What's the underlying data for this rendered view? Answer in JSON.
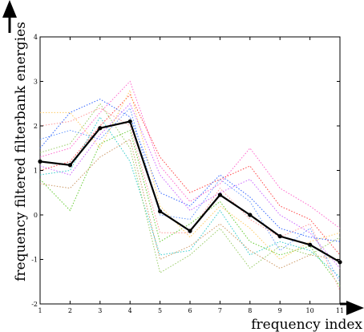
{
  "chart_data": {
    "type": "line",
    "xlabel": "frequency index",
    "ylabel": "frequency filtered filterbank energies",
    "xlim": [
      1,
      11
    ],
    "ylim": [
      -2,
      4
    ],
    "x_ticks": [
      "1",
      "2",
      "3",
      "4",
      "5",
      "6",
      "7",
      "8",
      "9",
      "10",
      "11"
    ],
    "y_ticks": [
      "-2",
      "-1",
      "0",
      "1",
      "2",
      "3",
      "4"
    ],
    "grid": false,
    "x": [
      1,
      2,
      3,
      4,
      5,
      6,
      7,
      8,
      9,
      10,
      11
    ],
    "main_series": {
      "values": [
        1.2,
        1.12,
        1.95,
        2.1,
        0.08,
        -0.36,
        0.45,
        0.0,
        -0.48,
        -0.67,
        -1.06
      ],
      "color": "#000000"
    },
    "background_series": [
      {
        "color": "#ff66cc",
        "values": [
          1.3,
          1.5,
          2.3,
          3.0,
          1.1,
          0.3,
          0.7,
          1.5,
          0.6,
          0.2,
          -0.3
        ]
      },
      {
        "color": "#ff4444",
        "values": [
          1.0,
          1.2,
          2.0,
          2.7,
          1.3,
          0.5,
          0.8,
          1.1,
          0.2,
          -0.1,
          -0.9
        ]
      },
      {
        "color": "#66cc33",
        "values": [
          0.8,
          0.1,
          1.6,
          1.9,
          -0.6,
          -0.2,
          0.3,
          -0.6,
          -0.9,
          -0.7,
          -1.6
        ]
      },
      {
        "color": "#3366ff",
        "values": [
          1.5,
          2.3,
          2.6,
          2.2,
          0.5,
          0.2,
          0.9,
          0.4,
          -0.3,
          -0.5,
          -0.6
        ]
      },
      {
        "color": "#cc66ff",
        "values": [
          1.1,
          0.9,
          1.8,
          2.5,
          0.9,
          0.1,
          0.5,
          0.8,
          0.0,
          -0.4,
          -1.2
        ]
      },
      {
        "color": "#33cccc",
        "values": [
          0.9,
          1.0,
          2.2,
          1.2,
          -0.9,
          -0.8,
          0.1,
          -0.9,
          -0.6,
          -0.8,
          -1.4
        ]
      },
      {
        "color": "#ffcc66",
        "values": [
          2.3,
          2.3,
          1.5,
          2.8,
          0.2,
          -0.5,
          0.2,
          -0.3,
          -1.0,
          -0.6,
          -0.4
        ]
      },
      {
        "color": "#99cc66",
        "values": [
          1.4,
          1.6,
          2.5,
          1.5,
          -1.3,
          -0.9,
          -0.3,
          -1.2,
          -0.7,
          -0.9,
          -0.5
        ]
      },
      {
        "color": "#cc9966",
        "values": [
          0.7,
          0.6,
          1.3,
          1.7,
          -1.0,
          -0.7,
          -0.2,
          -0.8,
          -1.2,
          -0.9,
          -1.0
        ]
      },
      {
        "color": "#6699ff",
        "values": [
          1.7,
          1.9,
          1.7,
          2.4,
          0.0,
          -0.1,
          0.8,
          0.3,
          -0.8,
          -0.3,
          -1.5
        ]
      },
      {
        "color": "#ff9999",
        "values": [
          2.0,
          2.1,
          2.4,
          2.0,
          -0.4,
          -0.4,
          0.6,
          -0.1,
          -0.5,
          -0.2,
          -1.7
        ]
      }
    ]
  }
}
